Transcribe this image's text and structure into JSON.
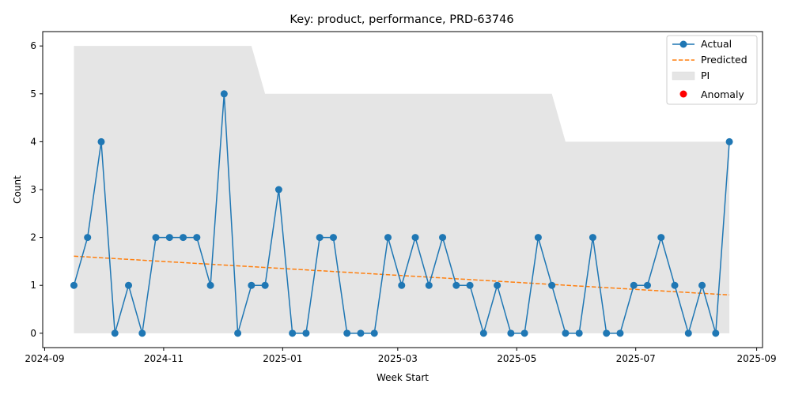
{
  "chart_data": {
    "type": "line",
    "title": "Key: product, performance, PRD-63746",
    "xlabel": "Week Start",
    "ylabel": "Count",
    "x_start": "2024-09-16",
    "x_step_days": 7,
    "x_count": 49,
    "xlim": [
      "2024-08-31",
      "2025-09-04"
    ],
    "ylim": [
      -0.3,
      6.3
    ],
    "x_ticks": [
      "2024-09-01",
      "2024-11-01",
      "2025-01-01",
      "2025-03-01",
      "2025-05-01",
      "2025-07-01",
      "2025-09-01"
    ],
    "x_tick_labels": [
      "2024-09",
      "2024-11",
      "2025-01",
      "2025-03",
      "2025-05",
      "2025-07",
      "2025-09"
    ],
    "y_ticks": [
      0,
      1,
      2,
      3,
      4,
      5,
      6
    ],
    "y_tick_labels": [
      "0",
      "1",
      "2",
      "3",
      "4",
      "5",
      "6"
    ],
    "grid": false,
    "legend": "top-right",
    "series": [
      {
        "name": "Actual",
        "color": "#1f77b4",
        "style": "line-marker",
        "values": [
          1,
          2,
          4,
          0,
          1,
          0,
          2,
          2,
          2,
          2,
          1,
          5,
          0,
          1,
          1,
          3,
          0,
          0,
          2,
          2,
          0,
          0,
          0,
          2,
          1,
          2,
          1,
          2,
          1,
          1,
          0,
          1,
          0,
          0,
          2,
          1,
          0,
          0,
          2,
          0,
          0,
          1,
          1,
          2,
          1,
          0,
          1,
          0,
          4
        ]
      },
      {
        "name": "Predicted",
        "color": "#ff7f0e",
        "style": "dashed",
        "start": 1.61,
        "end": 0.8
      },
      {
        "name": "PI",
        "color": "#e5e5e5",
        "style": "band",
        "lower": 0,
        "upper_steps": [
          {
            "from_index": 0,
            "to_index": 13,
            "value": 6
          },
          {
            "from_index": 14,
            "to_index": 35,
            "value": 5
          },
          {
            "from_index": 36,
            "to_index": 48,
            "value": 4
          }
        ]
      },
      {
        "name": "Anomaly",
        "color": "#ff0000",
        "style": "scatter",
        "values": []
      }
    ]
  }
}
